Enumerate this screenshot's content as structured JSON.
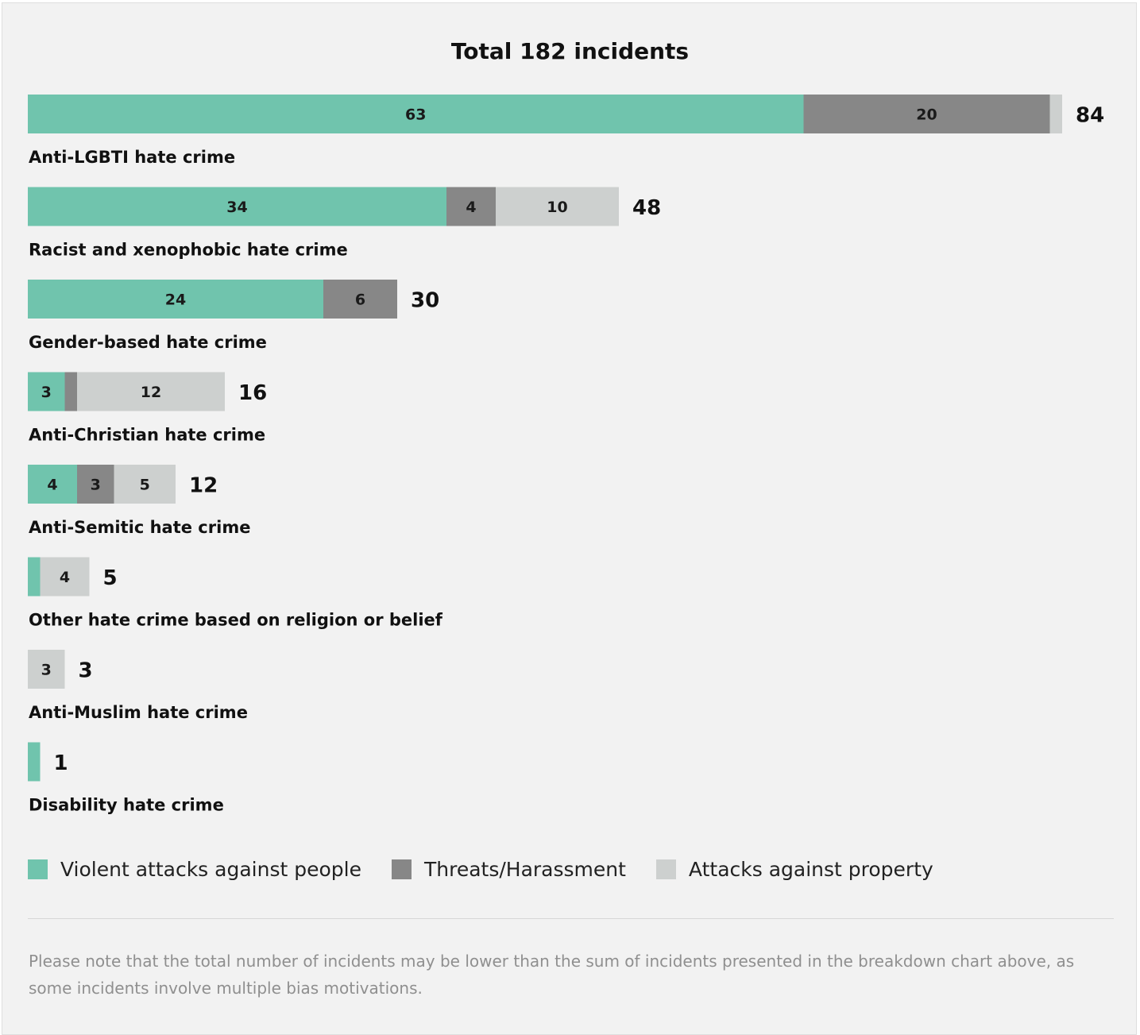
{
  "chart_data": {
    "type": "bar",
    "orientation": "horizontal",
    "stacked": true,
    "title": "Total 182 incidents",
    "categories": [
      "Anti-LGBTI hate crime",
      "Racist and xenophobic hate crime",
      "Gender-based hate crime",
      "Anti-Christian hate crime",
      "Anti-Semitic hate crime",
      "Other hate crime based on religion or belief",
      "Anti-Muslim hate crime",
      "Disability hate crime"
    ],
    "totals": [
      84,
      48,
      30,
      16,
      12,
      5,
      3,
      1
    ],
    "series": [
      {
        "name": "Violent attacks against people",
        "color": "#70c4ad",
        "values": [
          63,
          34,
          24,
          3,
          4,
          1,
          0,
          1
        ]
      },
      {
        "name": "Threats/Harassment",
        "color": "#878787",
        "values": [
          20,
          4,
          6,
          1,
          3,
          0,
          0,
          0
        ]
      },
      {
        "name": "Attacks against property",
        "color": "#cdd0cf",
        "values": [
          1,
          10,
          0,
          12,
          5,
          4,
          3,
          0
        ]
      }
    ],
    "xlabel": "",
    "ylabel": "",
    "xlim": [
      0,
      84
    ],
    "grid": false,
    "legend_position": "bottom-left"
  },
  "note": "Please note that the total number of incidents may be lower than the sum of incidents presented in the breakdown chart above, as some incidents involve multiple bias motivations."
}
